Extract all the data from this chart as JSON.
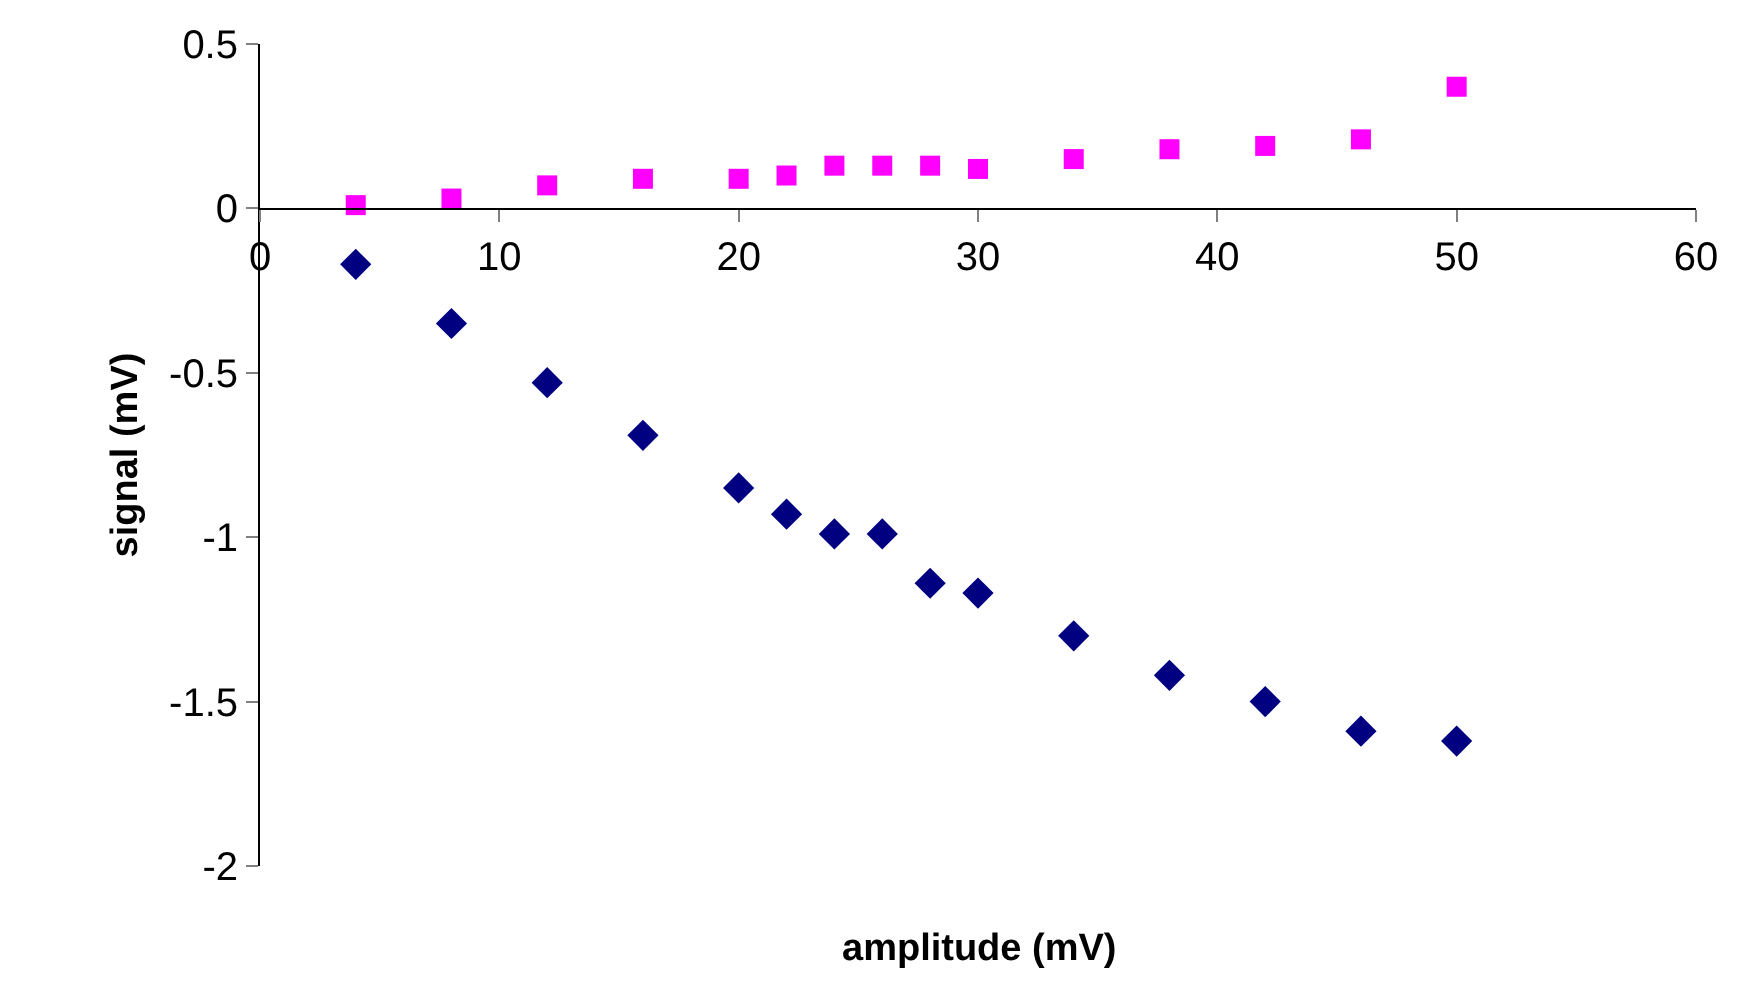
{
  "chart_data": {
    "type": "scatter",
    "xlabel": "amplitude (mV)",
    "ylabel": "signal (mV)",
    "xlim": [
      0,
      60
    ],
    "xticks": [
      0,
      10,
      20,
      30,
      40,
      50,
      60
    ],
    "ylim": [
      -2,
      0.5
    ],
    "yticks": [
      -2,
      -1.5,
      -1,
      -0.5,
      0,
      0.5
    ],
    "series": [
      {
        "color": "#000080",
        "marker": "diamond",
        "x": [
          4,
          8,
          12,
          16,
          20,
          22,
          24,
          26,
          28,
          30,
          34,
          38,
          42,
          46,
          50
        ],
        "values": [
          -0.17,
          -0.35,
          -0.53,
          -0.69,
          -0.85,
          -0.93,
          -0.99,
          -0.99,
          -1.14,
          -1.17,
          -1.3,
          -1.42,
          -1.5,
          -1.59,
          -1.62
        ]
      },
      {
        "color": "#ff00ff",
        "marker": "square",
        "x": [
          4,
          8,
          12,
          16,
          20,
          22,
          24,
          26,
          28,
          30,
          34,
          38,
          42,
          46,
          50
        ],
        "values": [
          0.01,
          0.03,
          0.07,
          0.09,
          0.09,
          0.1,
          0.13,
          0.13,
          0.13,
          0.12,
          0.15,
          0.18,
          0.19,
          0.21,
          0.37
        ]
      }
    ]
  }
}
